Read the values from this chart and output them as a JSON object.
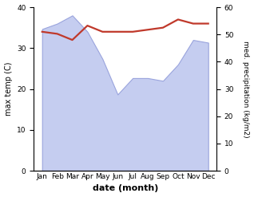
{
  "months": [
    "Jan",
    "Feb",
    "Mar",
    "Apr",
    "May",
    "Jun",
    "Jul",
    "Aug",
    "Sep",
    "Oct",
    "Nov",
    "Dec"
  ],
  "temperature": [
    34.0,
    33.5,
    32.0,
    35.5,
    34.0,
    34.0,
    34.0,
    34.5,
    35.0,
    37.0,
    36.0,
    36.0
  ],
  "precipitation": [
    52,
    54,
    57,
    51,
    41,
    28,
    34,
    34,
    33,
    39,
    48,
    47
  ],
  "temp_color": "#c0392b",
  "precip_fill_color": "#c5cdf0",
  "precip_edge_color": "#9aa4dd",
  "ylabel_left": "max temp (C)",
  "ylabel_right": "med. precipitation (kg/m2)",
  "xlabel": "date (month)",
  "ylim_left": [
    0,
    40
  ],
  "ylim_right": [
    0,
    60
  ],
  "yticks_left": [
    0,
    10,
    20,
    30,
    40
  ],
  "yticks_right": [
    0,
    10,
    20,
    30,
    40,
    50,
    60
  ],
  "bg_color": "#ffffff",
  "temp_linewidth": 1.6
}
